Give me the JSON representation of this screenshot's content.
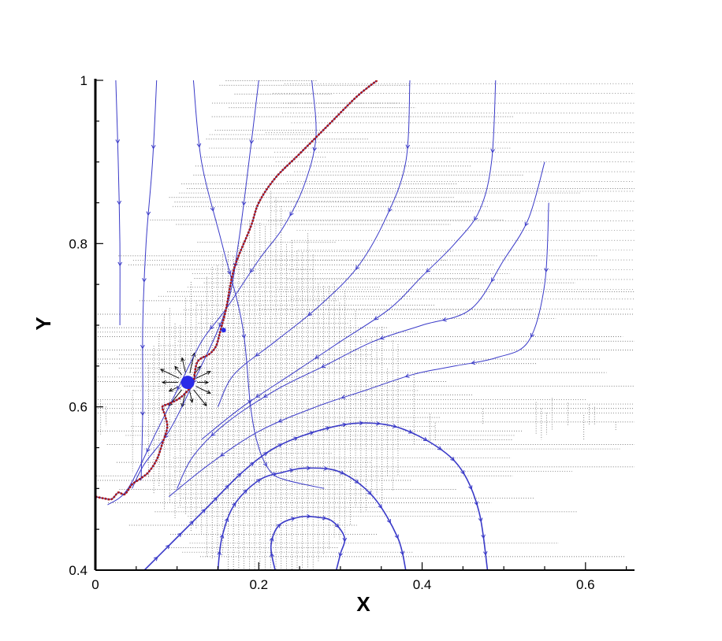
{
  "chart_data": {
    "type": "line",
    "title": "",
    "xlabel": "X",
    "ylabel": "Y",
    "xlim": [
      0,
      0.66
    ],
    "ylim": [
      0.4,
      1.0
    ],
    "x_ticks": [
      0,
      0.2,
      0.4,
      0.6
    ],
    "x_tick_labels": [
      "0",
      "0.2",
      "0.4",
      "0.6"
    ],
    "y_ticks": [
      0.4,
      0.6,
      0.8,
      1.0
    ],
    "y_tick_labels": [
      "0.4",
      "0.6",
      "0.8",
      "1"
    ],
    "grid": "adaptive mesh (dotted, refined near interface)",
    "legend": "none",
    "colors": {
      "streamline": "#3a3ac8",
      "interface": "#b01818",
      "bubble": "#2a2ae8",
      "vector": "#000000",
      "mesh": "#555555"
    },
    "bubble": {
      "x": 0.113,
      "y": 0.63
    },
    "interface": {
      "x": [
        0.0,
        0.01,
        0.02,
        0.028,
        0.036,
        0.045,
        0.055,
        0.065,
        0.075,
        0.082,
        0.088,
        0.085,
        0.082,
        0.088,
        0.095,
        0.105,
        0.115,
        0.12,
        0.125,
        0.14,
        0.148,
        0.153,
        0.16,
        0.17,
        0.19,
        0.2,
        0.22,
        0.25,
        0.29,
        0.32,
        0.345
      ],
      "y": [
        0.49,
        0.488,
        0.487,
        0.495,
        0.493,
        0.505,
        0.512,
        0.52,
        0.535,
        0.555,
        0.575,
        0.59,
        0.6,
        0.603,
        0.606,
        0.612,
        0.622,
        0.63,
        0.655,
        0.665,
        0.675,
        0.693,
        0.72,
        0.77,
        0.82,
        0.85,
        0.88,
        0.91,
        0.95,
        0.98,
        1.0
      ]
    },
    "series": [
      {
        "x": [
          0.025,
          0.028,
          0.03,
          0.03
        ],
        "y": [
          1.0,
          0.9,
          0.8,
          0.7
        ]
      },
      {
        "x": [
          0.075,
          0.07,
          0.062,
          0.058,
          0.058,
          0.056
        ],
        "y": [
          1.0,
          0.9,
          0.8,
          0.7,
          0.6,
          0.51
        ]
      },
      {
        "x": [
          0.12,
          0.13,
          0.155,
          0.18,
          0.19,
          0.2,
          0.215,
          0.235,
          0.28
        ],
        "y": [
          1.0,
          0.9,
          0.8,
          0.7,
          0.6,
          0.55,
          0.52,
          0.51,
          0.5
        ]
      },
      {
        "x": [
          0.2,
          0.188,
          0.175,
          0.16,
          0.12,
          0.09,
          0.06,
          0.045
        ],
        "y": [
          1.0,
          0.9,
          0.8,
          0.72,
          0.63,
          0.57,
          0.53,
          0.5
        ]
      },
      {
        "x": [
          0.265,
          0.27,
          0.255,
          0.23,
          0.2,
          0.16,
          0.13,
          0.1,
          0.075,
          0.04,
          0.015
        ],
        "y": [
          1.0,
          0.93,
          0.87,
          0.82,
          0.78,
          0.72,
          0.68,
          0.62,
          0.57,
          0.5,
          0.48
        ]
      },
      {
        "x": [
          0.385,
          0.38,
          0.355,
          0.32,
          0.27,
          0.22,
          0.17,
          0.15
        ],
        "y": [
          1.0,
          0.9,
          0.83,
          0.77,
          0.72,
          0.68,
          0.64,
          0.6
        ]
      },
      {
        "x": [
          0.49,
          0.485,
          0.47,
          0.44,
          0.4,
          0.36,
          0.3,
          0.24,
          0.18,
          0.13
        ],
        "y": [
          1.0,
          0.9,
          0.84,
          0.8,
          0.76,
          0.72,
          0.68,
          0.64,
          0.6,
          0.56
        ]
      },
      {
        "x": [
          0.55,
          0.53,
          0.5,
          0.46,
          0.4,
          0.34,
          0.28,
          0.22,
          0.16,
          0.12,
          0.1
        ],
        "y": [
          0.9,
          0.83,
          0.78,
          0.72,
          0.7,
          0.68,
          0.65,
          0.62,
          0.58,
          0.54,
          0.5
        ]
      },
      {
        "x": [
          0.555,
          0.55,
          0.53,
          0.49,
          0.44,
          0.39,
          0.33,
          0.27,
          0.2,
          0.14,
          0.09
        ],
        "y": [
          0.85,
          0.75,
          0.68,
          0.66,
          0.65,
          0.64,
          0.62,
          0.6,
          0.57,
          0.53,
          0.49
        ]
      },
      {
        "x": [
          0.06,
          0.1,
          0.14,
          0.18,
          0.22,
          0.27,
          0.32,
          0.37,
          0.42,
          0.45,
          0.47,
          0.48
        ],
        "y": [
          0.4,
          0.44,
          0.48,
          0.52,
          0.55,
          0.57,
          0.58,
          0.575,
          0.55,
          0.52,
          0.47,
          0.4
        ]
      },
      {
        "x": [
          0.15,
          0.155,
          0.17,
          0.2,
          0.23,
          0.26,
          0.3,
          0.34,
          0.37,
          0.38
        ],
        "y": [
          0.4,
          0.44,
          0.48,
          0.51,
          0.52,
          0.525,
          0.52,
          0.49,
          0.44,
          0.4
        ]
      },
      {
        "x": [
          0.22,
          0.215,
          0.225,
          0.25,
          0.27,
          0.29,
          0.305,
          0.3,
          0.295
        ],
        "y": [
          0.4,
          0.43,
          0.455,
          0.465,
          0.465,
          0.46,
          0.44,
          0.42,
          0.4
        ]
      }
    ]
  }
}
